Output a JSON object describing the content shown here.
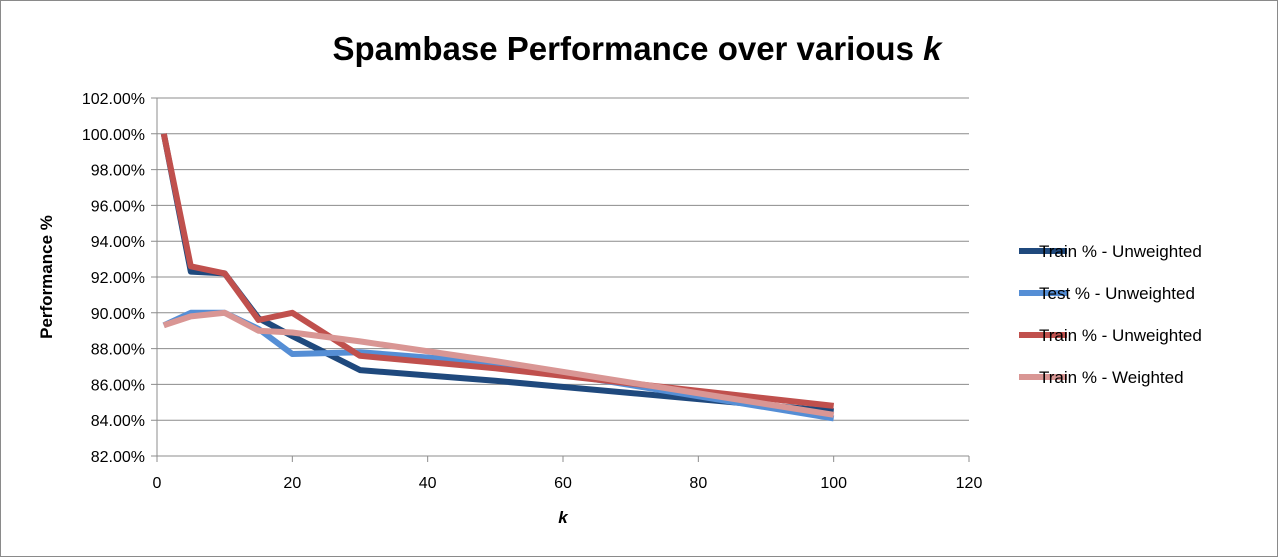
{
  "chart_data": {
    "type": "line",
    "title": "Spambase Performance over various",
    "title_italic_suffix": "k",
    "xlabel": "k",
    "ylabel": "Performance %",
    "xlim": [
      0,
      120
    ],
    "ylim": [
      82,
      102
    ],
    "x_ticks": [
      "0",
      "20",
      "40",
      "60",
      "80",
      "100",
      "120"
    ],
    "y_ticks": [
      "82.00%",
      "84.00%",
      "86.00%",
      "88.00%",
      "90.00%",
      "92.00%",
      "94.00%",
      "96.00%",
      "98.00%",
      "100.00%",
      "102.00%"
    ],
    "grid": true,
    "legend_position": "right",
    "series": [
      {
        "name": "Train % - Unweighted",
        "color": "#1F497D",
        "x": [
          1,
          5,
          10,
          15,
          20,
          30,
          50,
          100
        ],
        "y": [
          100.0,
          92.3,
          92.2,
          89.7,
          88.7,
          86.8,
          86.2,
          84.5
        ]
      },
      {
        "name": "Test % - Unweighted",
        "color": "#558ED5",
        "x": [
          1,
          5,
          10,
          15,
          20,
          30,
          50,
          100
        ],
        "y": [
          89.3,
          90.0,
          90.0,
          89.1,
          87.7,
          87.8,
          87.2,
          84.1
        ]
      },
      {
        "name": "Train % - Unweighted",
        "color": "#C0504D",
        "x": [
          1,
          5,
          10,
          15,
          20,
          30,
          50,
          100
        ],
        "y": [
          100.0,
          92.6,
          92.2,
          89.6,
          90.0,
          87.6,
          86.9,
          84.8
        ]
      },
      {
        "name": "Train % - Weighted",
        "color": "#D99694",
        "x": [
          1,
          5,
          10,
          15,
          20,
          30,
          50,
          100
        ],
        "y": [
          89.3,
          89.8,
          90.0,
          89.0,
          88.9,
          88.4,
          87.3,
          84.3
        ]
      }
    ]
  }
}
